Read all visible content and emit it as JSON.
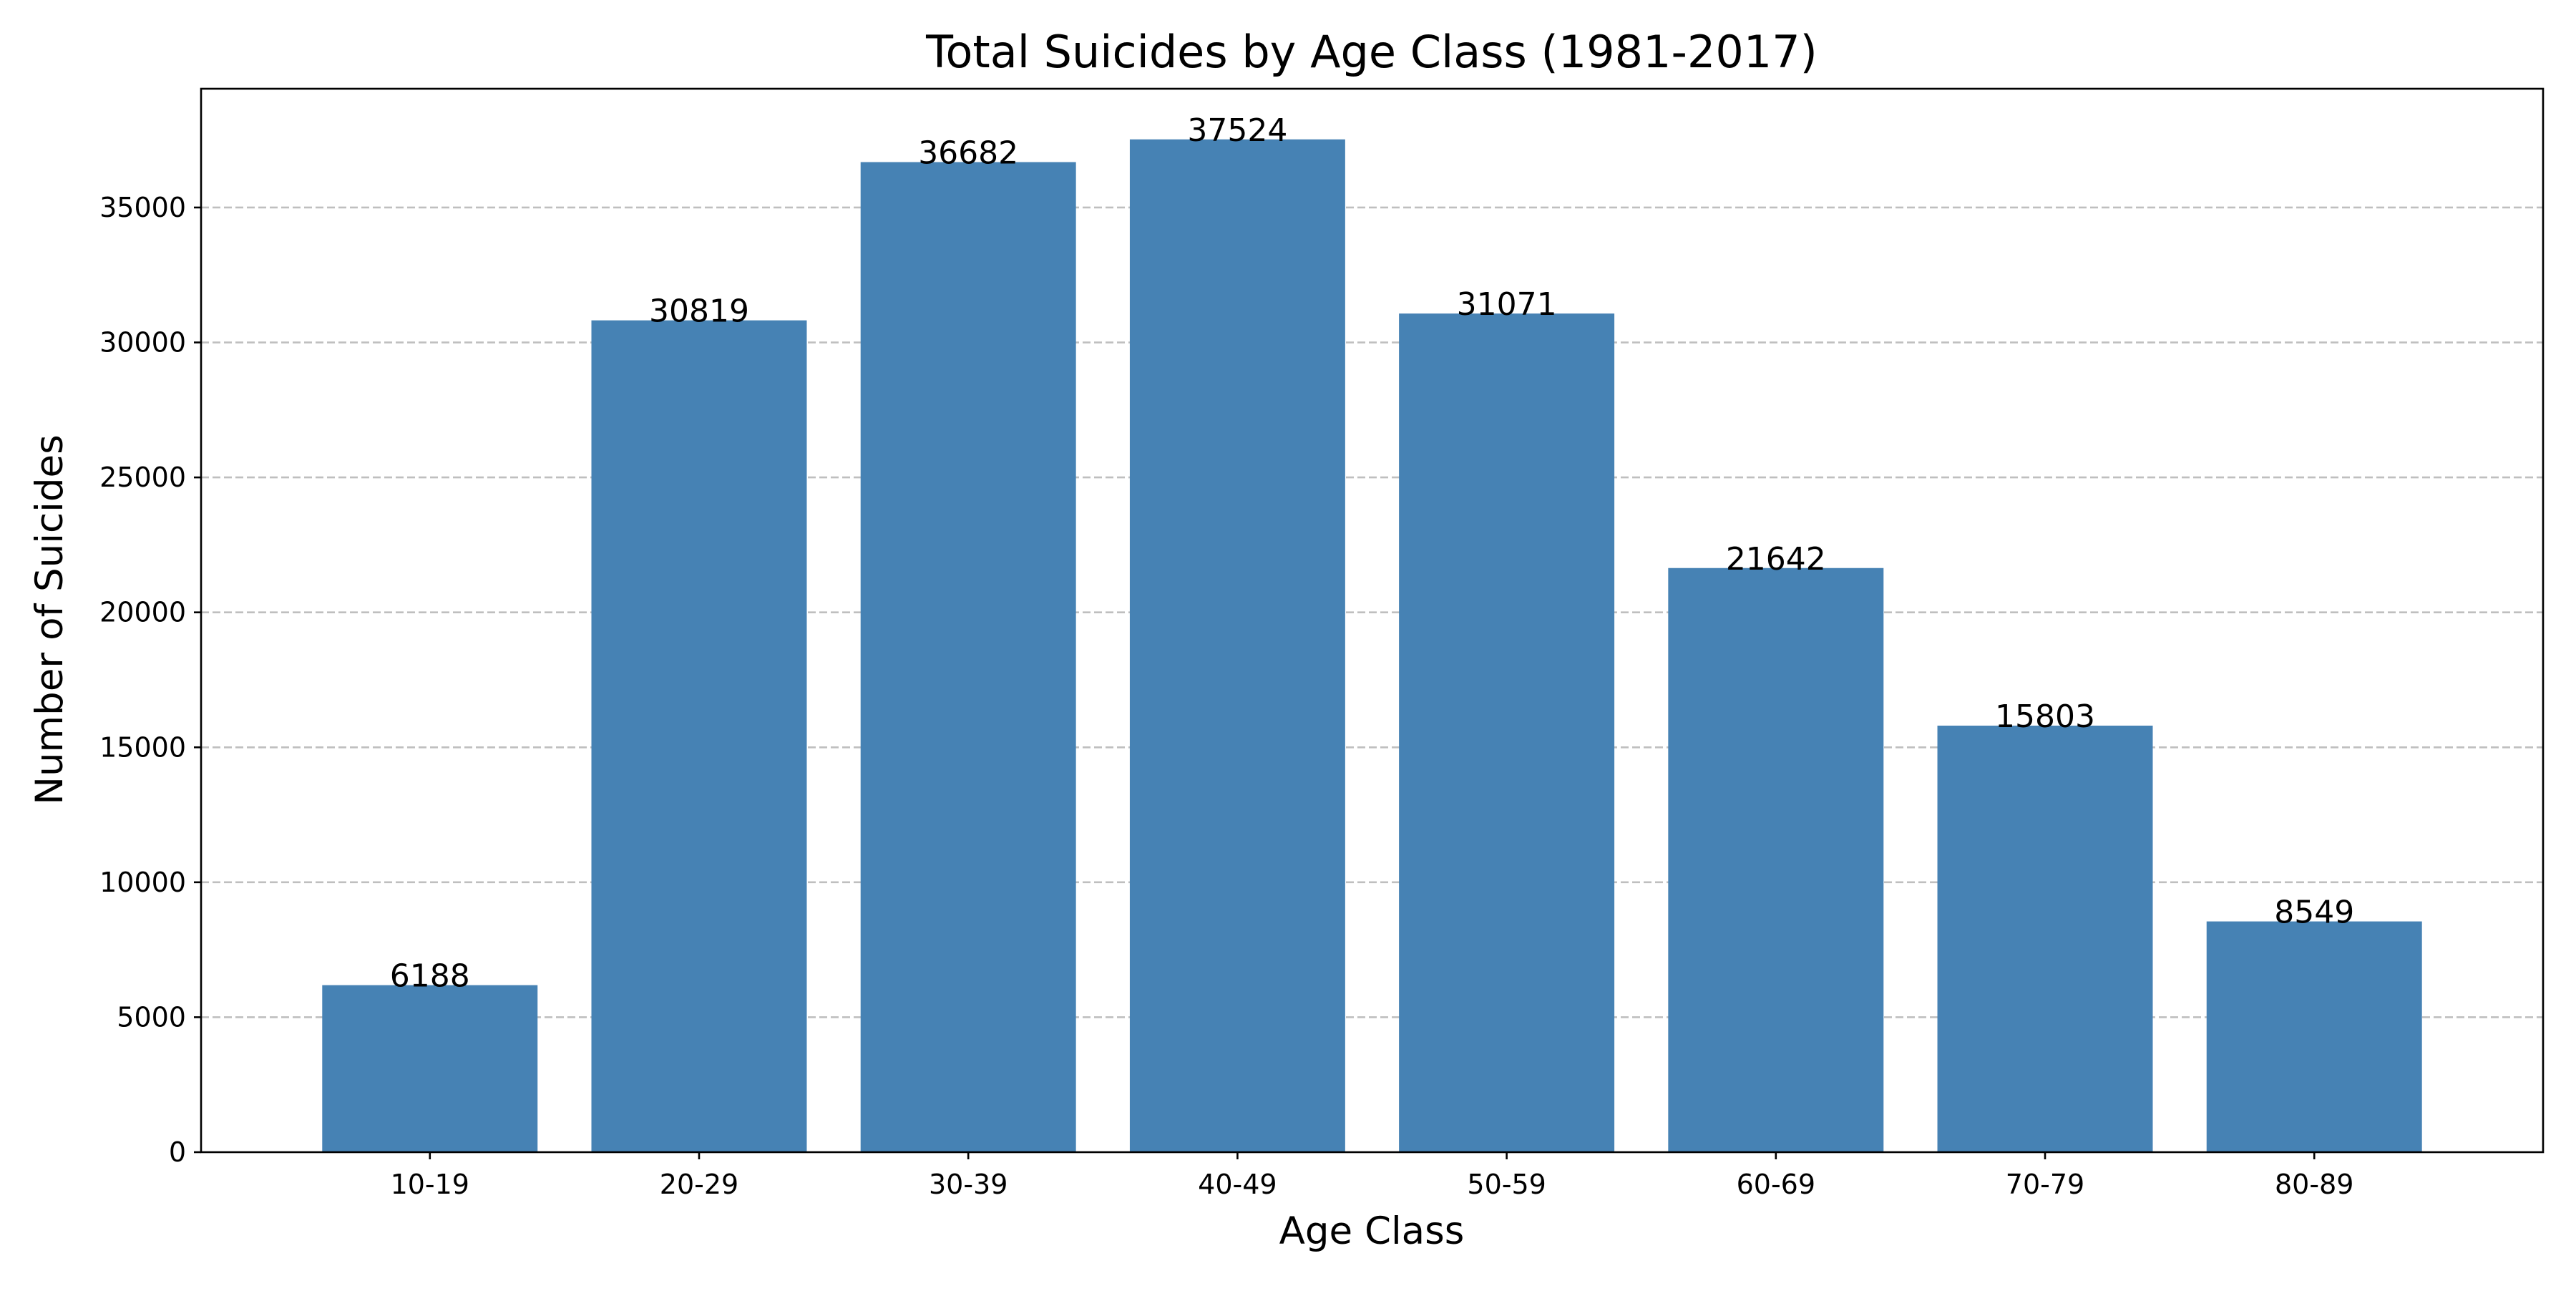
{
  "chart_data": {
    "type": "bar",
    "title": "Total Suicides by Age Class (1981-2017)",
    "xlabel": "Age Class",
    "ylabel": "Number of Suicides",
    "categories": [
      "10-19",
      "20-29",
      "30-39",
      "40-49",
      "50-59",
      "60-69",
      "70-79",
      "80-89"
    ],
    "values": [
      6188,
      30819,
      36682,
      37524,
      31071,
      21642,
      15803,
      8549
    ],
    "data_labels": [
      "6188",
      "30819",
      "36682",
      "37524",
      "31071",
      "21642",
      "15803",
      "8549"
    ],
    "ylim": [
      0,
      39400
    ],
    "yticks": [
      0,
      5000,
      10000,
      15000,
      20000,
      25000,
      30000,
      35000
    ],
    "ytick_labels": [
      "0",
      "5000",
      "10000",
      "15000",
      "20000",
      "25000",
      "30000",
      "35000"
    ],
    "grid": "y-axis dashed",
    "legend": "none",
    "bar_color": "#4682b4"
  }
}
